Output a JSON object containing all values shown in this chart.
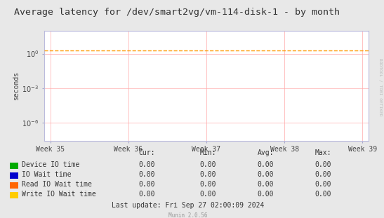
{
  "title": "Average latency for /dev/smart2vg/vm-114-disk-1 - by month",
  "ylabel": "seconds",
  "background_color": "#e8e8e8",
  "plot_bg_color": "#ffffff",
  "grid_color": "#ffaaaa",
  "grid_color_minor": "#ffdddd",
  "x_tick_labels": [
    "Week 35",
    "Week 36",
    "Week 37",
    "Week 38",
    "Week 39"
  ],
  "ylim_min": 3e-08,
  "ylim_max": 100.0,
  "dashed_line_value": 2.0,
  "dashed_line_color": "#ff9900",
  "legend_entries": [
    {
      "label": "Device IO time",
      "color": "#00aa00"
    },
    {
      "label": "IO Wait time",
      "color": "#0000cc"
    },
    {
      "label": "Read IO Wait time",
      "color": "#ff6600"
    },
    {
      "label": "Write IO Wait time",
      "color": "#ffcc00"
    }
  ],
  "table_headers": [
    "Cur:",
    "Min:",
    "Avg:",
    "Max:"
  ],
  "table_values": [
    [
      "0.00",
      "0.00",
      "0.00",
      "0.00"
    ],
    [
      "0.00",
      "0.00",
      "0.00",
      "0.00"
    ],
    [
      "0.00",
      "0.00",
      "0.00",
      "0.00"
    ],
    [
      "0.00",
      "0.00",
      "0.00",
      "0.00"
    ]
  ],
  "last_update": "Last update: Fri Sep 27 02:00:09 2024",
  "watermark": "Munin 2.0.56",
  "rrdtool_label": "RRDTOOL / TOBI OETIKER",
  "title_fontsize": 9.5,
  "axis_label_fontsize": 7,
  "tick_fontsize": 7,
  "table_fontsize": 7
}
